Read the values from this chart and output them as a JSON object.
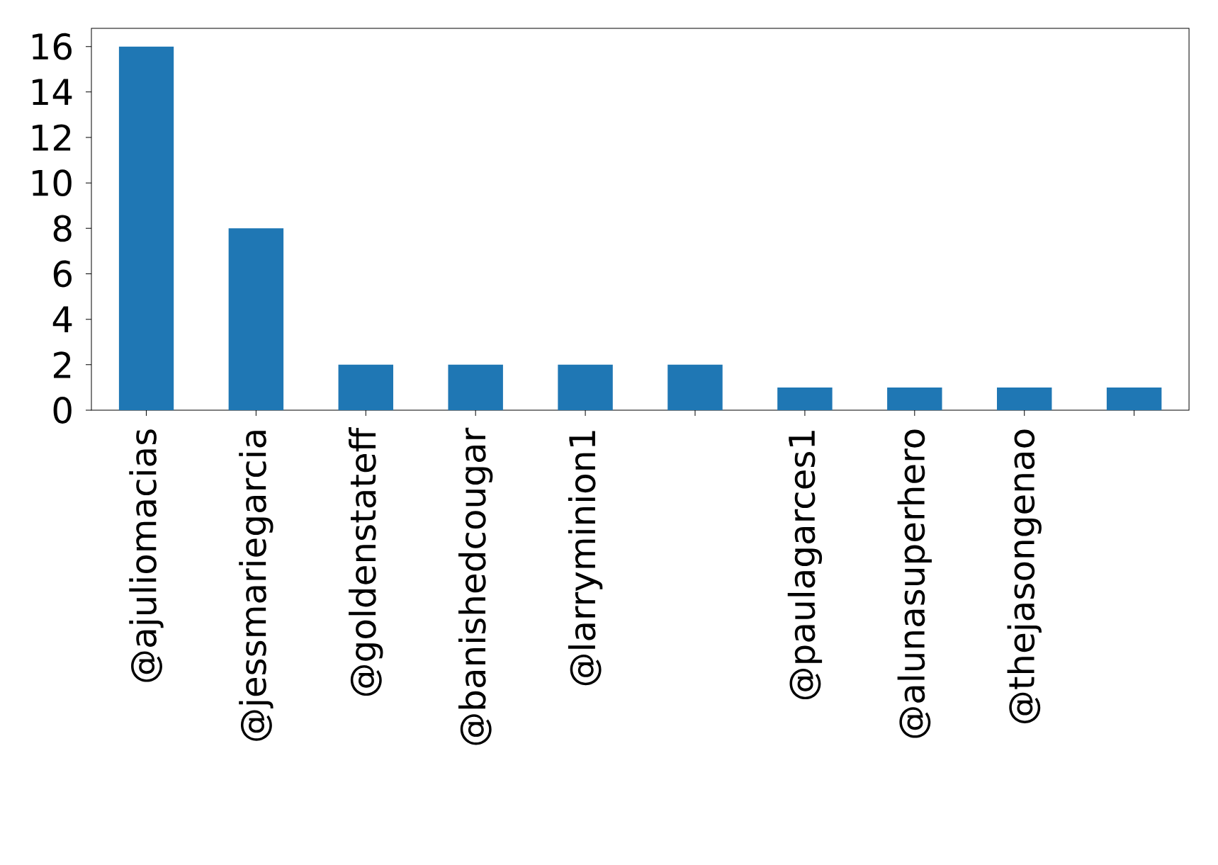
{
  "chart_data": {
    "type": "bar",
    "categories": [
      "@ajuliomacias",
      "@jessmariegarcia",
      "@goldenstateff",
      "@banishedcougar",
      "@larryminion1",
      null,
      "@paulagarces1",
      "@alunasuperhero",
      "@thejasongenao",
      null
    ],
    "values": [
      16,
      8,
      2,
      2,
      2,
      2,
      1,
      1,
      1,
      1
    ],
    "color": "#1f77b4",
    "ylim": [
      0,
      16.8
    ],
    "yticks": [
      0,
      2,
      4,
      6,
      8,
      10,
      12,
      14,
      16
    ],
    "grid": false
  }
}
